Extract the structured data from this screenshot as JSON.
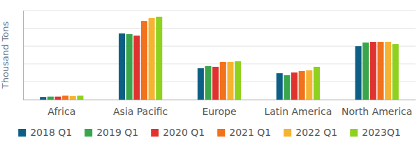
{
  "chart_data": {
    "type": "bar",
    "y_label": "Thousand Tons",
    "categories": [
      "Africa",
      "Asia Pacific",
      "Europe",
      "Latin America",
      "North America"
    ],
    "series": [
      {
        "name": "2018 Q1",
        "color": "#0e5f86",
        "values": [
          0.15,
          3.71,
          1.76,
          1.48,
          3.0
        ]
      },
      {
        "name": "2019 Q1",
        "color": "#3aa64b",
        "values": [
          0.17,
          3.67,
          1.88,
          1.37,
          3.2
        ]
      },
      {
        "name": "2020 Q1",
        "color": "#e0322f",
        "values": [
          0.17,
          3.59,
          1.84,
          1.52,
          3.24
        ]
      },
      {
        "name": "2021 Q1",
        "color": "#f2711c",
        "values": [
          0.22,
          4.41,
          2.11,
          1.6,
          3.24
        ]
      },
      {
        "name": "2022 Q1",
        "color": "#f6b332",
        "values": [
          0.2,
          4.57,
          2.11,
          1.64,
          3.24
        ]
      },
      {
        "name": "2023Q1",
        "color": "#8fd11f",
        "values": [
          0.22,
          4.65,
          2.15,
          1.84,
          3.12
        ]
      }
    ],
    "ylim": [
      0,
      5
    ],
    "yticks": [
      0,
      1,
      2,
      3,
      4,
      5
    ],
    "grid": true,
    "legend": "bottom",
    "tick_labels": "x"
  }
}
